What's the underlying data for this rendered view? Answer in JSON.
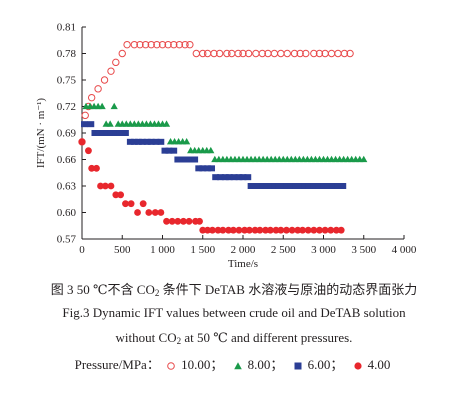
{
  "caption": {
    "zh_before": "图 3   50 ℃不含 CO",
    "zh_sub": "2",
    "zh_after": " 条件下 DeTAB 水溶液与原油的动态界面张力",
    "en1": "Fig.3   Dynamic IFT values between crude oil and DeTAB solution",
    "en2_before": "without CO",
    "en2_sub": "2",
    "en2_after": " at 50 ℃ and different pressures."
  },
  "legend": {
    "title": "Pressure/MPa：",
    "items": [
      {
        "label": "10.00；",
        "marker": "open-circle",
        "color": "#e8494a"
      },
      {
        "label": "8.00；",
        "marker": "triangle",
        "color": "#1a9a4a"
      },
      {
        "label": "6.00；",
        "marker": "square",
        "color": "#2b3e95"
      },
      {
        "label": "4.00",
        "marker": "filled-circle",
        "color": "#e8272d"
      }
    ]
  },
  "chart_data": {
    "type": "scatter",
    "title": "",
    "xlabel": "Time/s",
    "ylabel": "IFT/(mN · m⁻¹)",
    "xlim": [
      0,
      4000
    ],
    "ylim": [
      0.57,
      0.81
    ],
    "xticks": [
      0,
      500,
      1000,
      1500,
      2000,
      2500,
      3000,
      3500,
      4000
    ],
    "xtick_labels": [
      "0",
      "500",
      "1 000",
      "1 500",
      "2 000",
      "2 500",
      "3 000",
      "3 500",
      "4 000"
    ],
    "yticks": [
      0.57,
      0.6,
      0.63,
      0.66,
      0.69,
      0.72,
      0.75,
      0.78,
      0.81
    ],
    "ytick_labels": [
      "0.57",
      "0.60",
      "0.63",
      "0.66",
      "0.69",
      "0.72",
      "0.75",
      "0.78",
      "0.81"
    ],
    "grid": false,
    "series": [
      {
        "name": "10.00",
        "marker": "open-circle",
        "color": "#e8494a",
        "x": [
          0,
          40,
          80,
          120,
          200,
          280,
          360,
          420,
          500,
          560,
          650,
          720,
          790,
          860,
          930,
          1000,
          1070,
          1140,
          1210,
          1280,
          1340,
          1420,
          1500,
          1560,
          1640,
          1710,
          1800,
          1860,
          1940,
          2000,
          2070,
          2160,
          2240,
          2310,
          2390,
          2470,
          2550,
          2640,
          2710,
          2780,
          2880,
          2950,
          3020,
          3100,
          3180,
          3260,
          3330
        ],
        "y": [
          0.68,
          0.71,
          0.72,
          0.73,
          0.74,
          0.75,
          0.76,
          0.77,
          0.78,
          0.79,
          0.79,
          0.79,
          0.79,
          0.79,
          0.79,
          0.79,
          0.79,
          0.79,
          0.79,
          0.79,
          0.79,
          0.78,
          0.78,
          0.78,
          0.78,
          0.78,
          0.78,
          0.78,
          0.78,
          0.78,
          0.78,
          0.78,
          0.78,
          0.78,
          0.78,
          0.78,
          0.78,
          0.78,
          0.78,
          0.78,
          0.78,
          0.78,
          0.78,
          0.78,
          0.78,
          0.78,
          0.78
        ]
      },
      {
        "name": "8.00",
        "marker": "triangle",
        "color": "#1a9a4a",
        "x": [
          50,
          100,
          150,
          200,
          250,
          300,
          350,
          400,
          450,
          500,
          550,
          600,
          650,
          700,
          750,
          800,
          850,
          900,
          950,
          1000,
          1050,
          1100,
          1150,
          1200,
          1250,
          1300,
          1350,
          1400,
          1450,
          1500,
          1550,
          1600,
          1650,
          1700,
          1750,
          1800,
          1850,
          1900,
          1950,
          2000,
          2050,
          2100,
          2150,
          2200,
          2250,
          2300,
          2350,
          2400,
          2450,
          2500,
          2550,
          2600,
          2650,
          2700,
          2750,
          2800,
          2850,
          2900,
          2950,
          3000,
          3050,
          3100,
          3150,
          3200,
          3250,
          3300,
          3350,
          3400,
          3450,
          3500
        ],
        "y": [
          0.72,
          0.72,
          0.72,
          0.72,
          0.72,
          0.7,
          0.7,
          0.72,
          0.7,
          0.7,
          0.7,
          0.7,
          0.7,
          0.7,
          0.7,
          0.7,
          0.7,
          0.7,
          0.7,
          0.7,
          0.7,
          0.68,
          0.68,
          0.68,
          0.68,
          0.68,
          0.67,
          0.67,
          0.67,
          0.67,
          0.67,
          0.67,
          0.66,
          0.66,
          0.66,
          0.66,
          0.66,
          0.66,
          0.66,
          0.66,
          0.66,
          0.66,
          0.66,
          0.66,
          0.66,
          0.66,
          0.66,
          0.66,
          0.66,
          0.66,
          0.66,
          0.66,
          0.66,
          0.66,
          0.66,
          0.66,
          0.66,
          0.66,
          0.66,
          0.66,
          0.66,
          0.66,
          0.66,
          0.66,
          0.66,
          0.66,
          0.66,
          0.66,
          0.66,
          0.66
        ]
      },
      {
        "name": "6.00",
        "marker": "square",
        "color": "#2b3e95",
        "x": [
          30,
          110,
          160,
          210,
          260,
          310,
          360,
          420,
          470,
          540,
          600,
          650,
          700,
          750,
          810,
          860,
          920,
          980,
          1030,
          1080,
          1140,
          1190,
          1240,
          1290,
          1340,
          1400,
          1450,
          1500,
          1560,
          1610,
          1660,
          1720,
          1780,
          1830,
          1890,
          1950,
          2000,
          2060,
          2100,
          2150,
          2200,
          2250,
          2300,
          2350,
          2400,
          2450,
          2500,
          2550,
          2600,
          2660,
          2710,
          2770,
          2820,
          2880,
          2940,
          3000,
          3060,
          3120,
          3180,
          3240
        ],
        "y": [
          0.7,
          0.7,
          0.69,
          0.69,
          0.69,
          0.69,
          0.69,
          0.69,
          0.69,
          0.69,
          0.68,
          0.68,
          0.68,
          0.68,
          0.68,
          0.68,
          0.68,
          0.68,
          0.67,
          0.67,
          0.67,
          0.66,
          0.66,
          0.66,
          0.66,
          0.66,
          0.65,
          0.65,
          0.65,
          0.65,
          0.64,
          0.64,
          0.64,
          0.64,
          0.64,
          0.64,
          0.64,
          0.64,
          0.63,
          0.63,
          0.63,
          0.63,
          0.63,
          0.63,
          0.63,
          0.63,
          0.63,
          0.63,
          0.63,
          0.63,
          0.63,
          0.63,
          0.63,
          0.63,
          0.63,
          0.63,
          0.63,
          0.63,
          0.63,
          0.63
        ]
      },
      {
        "name": "4.00",
        "marker": "filled-circle",
        "color": "#e8272d",
        "x": [
          0,
          80,
          120,
          180,
          230,
          290,
          360,
          420,
          480,
          540,
          610,
          690,
          760,
          830,
          910,
          980,
          1050,
          1120,
          1190,
          1260,
          1330,
          1410,
          1460,
          1500,
          1560,
          1620,
          1690,
          1750,
          1820,
          1880,
          1950,
          2020,
          2080,
          2150,
          2210,
          2280,
          2340,
          2410,
          2470,
          2540,
          2610,
          2680,
          2740,
          2810,
          2880,
          2950,
          3020,
          3090,
          3160,
          3220
        ],
        "y": [
          0.68,
          0.67,
          0.65,
          0.65,
          0.63,
          0.63,
          0.63,
          0.62,
          0.62,
          0.61,
          0.61,
          0.6,
          0.61,
          0.6,
          0.6,
          0.6,
          0.59,
          0.59,
          0.59,
          0.59,
          0.59,
          0.59,
          0.59,
          0.58,
          0.58,
          0.58,
          0.58,
          0.58,
          0.58,
          0.58,
          0.58,
          0.58,
          0.58,
          0.58,
          0.58,
          0.58,
          0.58,
          0.58,
          0.58,
          0.58,
          0.58,
          0.58,
          0.58,
          0.58,
          0.58,
          0.58,
          0.58,
          0.58,
          0.58,
          0.58
        ]
      }
    ]
  }
}
